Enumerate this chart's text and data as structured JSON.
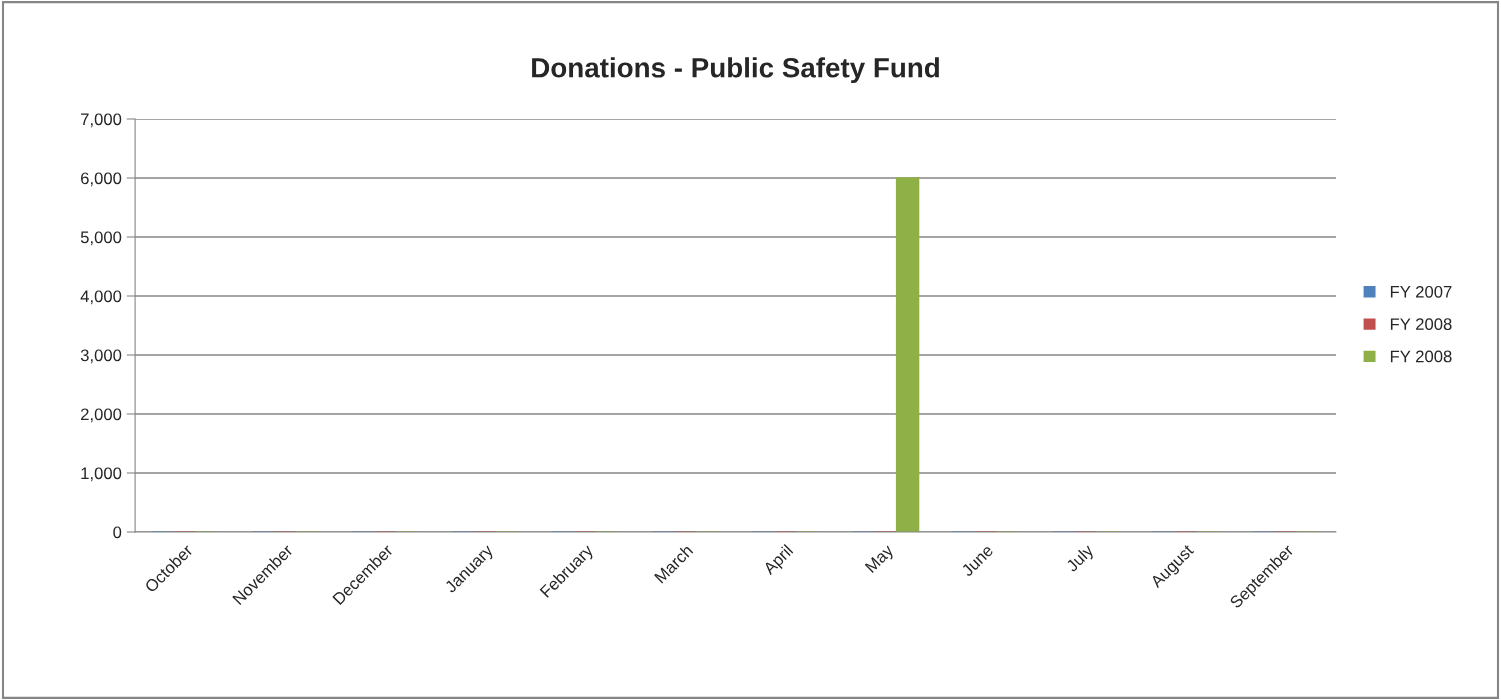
{
  "chart_data": {
    "type": "bar",
    "title": "Donations - Public Safety Fund",
    "categories": [
      "October",
      "November",
      "December",
      "January",
      "February",
      "March",
      "April",
      "May",
      "June",
      "July",
      "August",
      "September"
    ],
    "series": [
      {
        "name": "FY 2007",
        "color": "#4f81bd",
        "values": [
          0,
          0,
          0,
          0,
          0,
          0,
          0,
          0,
          0,
          0,
          0,
          0
        ]
      },
      {
        "name": "FY 2008",
        "color": "#c0504d",
        "values": [
          0,
          0,
          0,
          0,
          0,
          0,
          0,
          0,
          0,
          0,
          0,
          0
        ]
      },
      {
        "name": "FY 2008",
        "color": "#8fb046",
        "values": [
          0,
          0,
          0,
          0,
          0,
          0,
          0,
          6000,
          0,
          0,
          0,
          0
        ]
      }
    ],
    "ylim": [
      0,
      7000
    ],
    "yticks": [
      {
        "value": 0,
        "label": "0"
      },
      {
        "value": 1000,
        "label": "1,000"
      },
      {
        "value": 2000,
        "label": "2,000"
      },
      {
        "value": 3000,
        "label": "3,000"
      },
      {
        "value": 4000,
        "label": "4,000"
      },
      {
        "value": 5000,
        "label": "5,000"
      },
      {
        "value": 6000,
        "label": "6,000"
      },
      {
        "value": 7000,
        "label": "7,000"
      }
    ],
    "grid": "y",
    "legend": "right"
  }
}
